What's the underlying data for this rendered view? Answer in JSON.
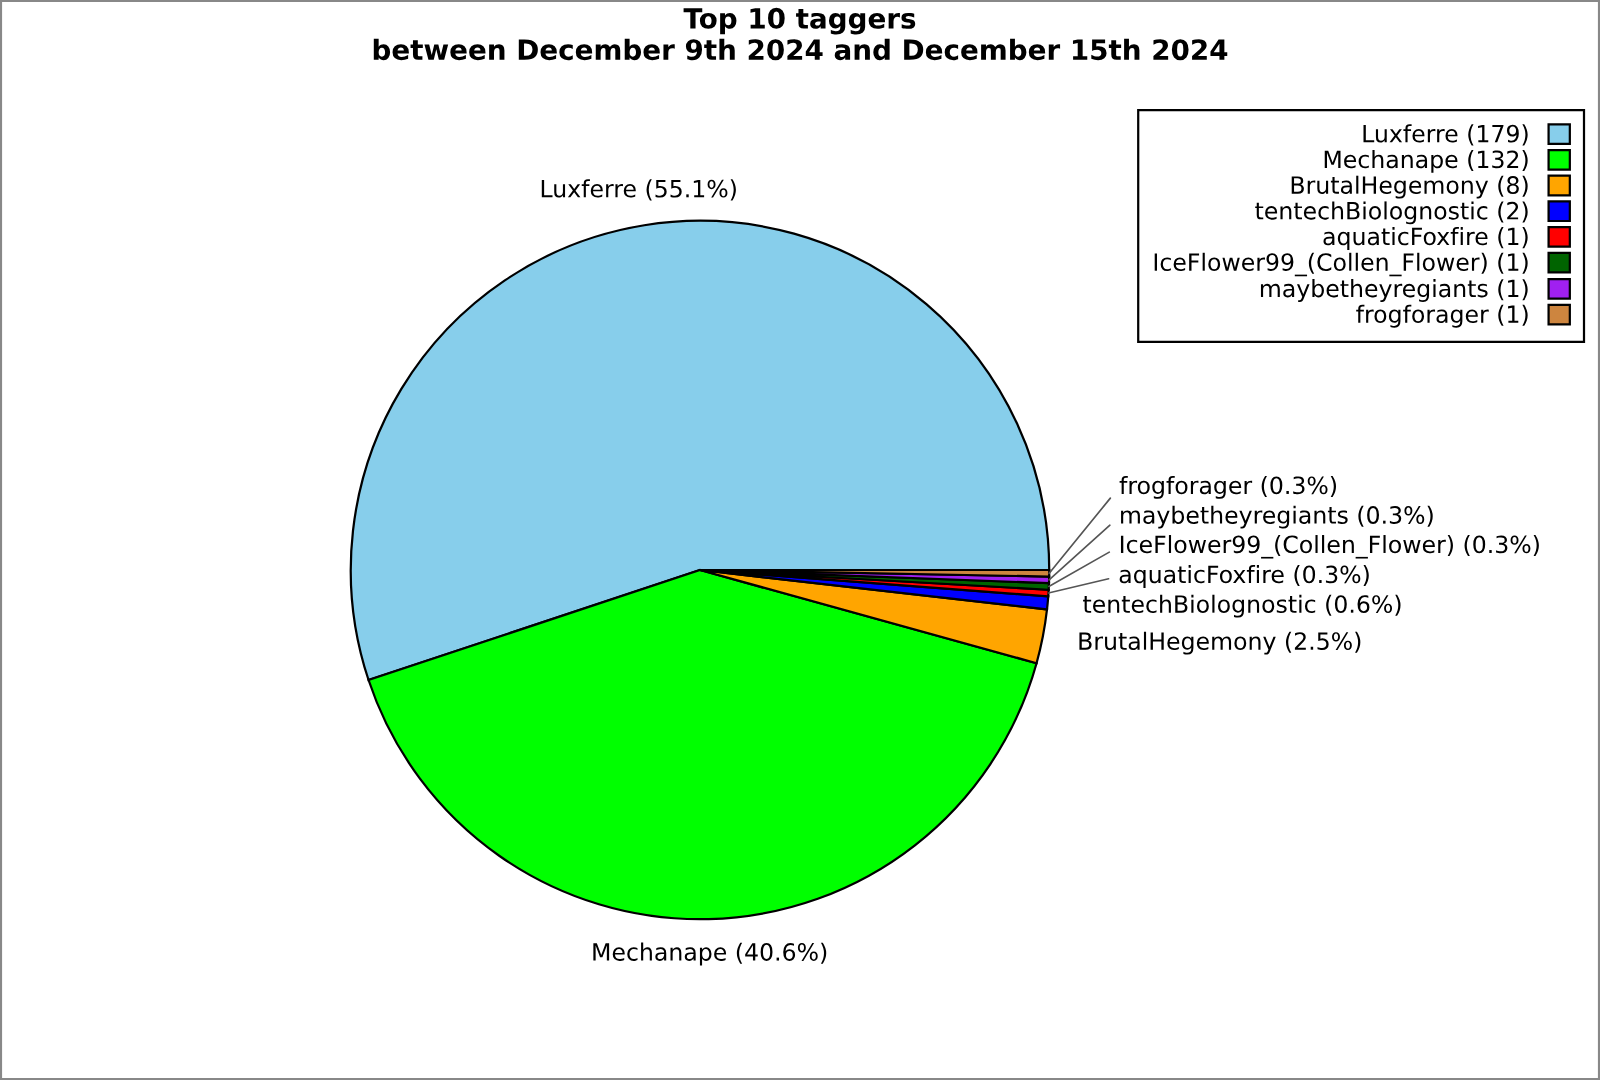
{
  "chart_data": {
    "type": "pie",
    "title": "Top 10 taggers\nbetween December 9th 2024 and December 15th 2024",
    "categories": [
      "Luxferre (179)",
      "Mechanape (132)",
      "BrutalHegemony (8)",
      "tentechBiolognostic (2)",
      "aquaticFoxfire (1)",
      "IceFlower99_(Collen_Flower) (1)",
      "maybetheyregiants (1)",
      "frogforager (1)"
    ],
    "values": [
      55.1,
      40.6,
      2.5,
      0.6,
      0.3,
      0.3,
      0.3,
      0.3
    ],
    "value_labels": [
      "Luxferre (55.1%)",
      "Mechanape (40.6%)",
      "BrutalHegemony (2.5%)",
      "tentechBiolognostic (0.6%)",
      "aquaticFoxfire (0.3%)",
      "IceFlower99_(Collen_Flower) (0.3%)",
      "maybetheyregiants (0.3%)",
      "frogforager (0.3%)"
    ],
    "colors": [
      "#87ceeb",
      "#00ff00",
      "#ffa500",
      "#0000ff",
      "#ff0000",
      "#006400",
      "#a020f0",
      "#cd853f"
    ],
    "legend": "top right"
  }
}
